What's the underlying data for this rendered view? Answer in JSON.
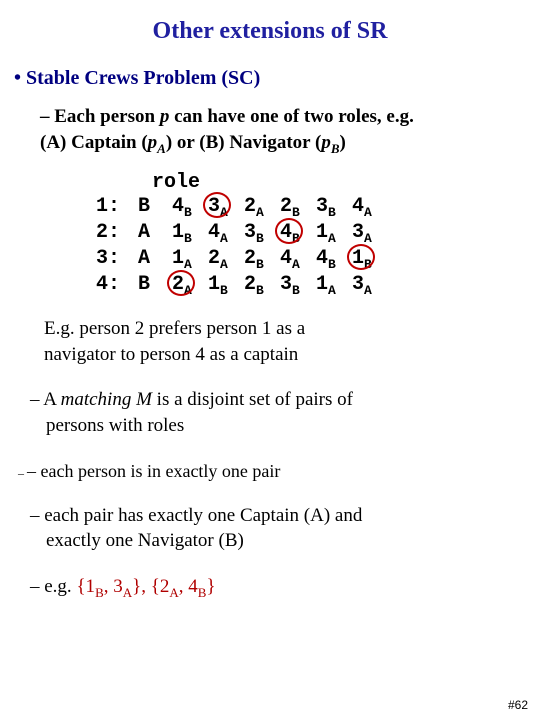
{
  "title": "Other extensions of SR",
  "bullet": "• Stable Crews Problem (SC)",
  "sub_line1": "– Each person ",
  "sub_p": "p",
  "sub_line1b": " can have one of two roles, e.g.",
  "sub_line2a": "(A) Captain (",
  "sub_pA": "p",
  "sub_Asub": "A",
  "sub_line2b": ") or (B) Navigator (",
  "sub_pB": "p",
  "sub_Bsub": "B",
  "sub_line2c": ")",
  "role_hdr": "role",
  "rows": [
    {
      "label": "1:",
      "role": "B",
      "cells": [
        {
          "n": "4",
          "s": "B",
          "c": false
        },
        {
          "n": "3",
          "s": "A",
          "c": true
        },
        {
          "n": "2",
          "s": "A",
          "c": false
        },
        {
          "n": "2",
          "s": "B",
          "c": false
        },
        {
          "n": "3",
          "s": "B",
          "c": false
        },
        {
          "n": "4",
          "s": "A",
          "c": false
        }
      ]
    },
    {
      "label": "2:",
      "role": "A",
      "cells": [
        {
          "n": "1",
          "s": "B",
          "c": false
        },
        {
          "n": "4",
          "s": "A",
          "c": false
        },
        {
          "n": "3",
          "s": "B",
          "c": false
        },
        {
          "n": "4",
          "s": "B",
          "c": true
        },
        {
          "n": "1",
          "s": "A",
          "c": false
        },
        {
          "n": "3",
          "s": "A",
          "c": false
        }
      ]
    },
    {
      "label": "3:",
      "role": "A",
      "cells": [
        {
          "n": "1",
          "s": "A",
          "c": false
        },
        {
          "n": "2",
          "s": "A",
          "c": false
        },
        {
          "n": "2",
          "s": "B",
          "c": false
        },
        {
          "n": "4",
          "s": "A",
          "c": false
        },
        {
          "n": "4",
          "s": "B",
          "c": false
        },
        {
          "n": "1",
          "s": "B",
          "c": true
        }
      ]
    },
    {
      "label": "4:",
      "role": "B",
      "cells": [
        {
          "n": "2",
          "s": "A",
          "c": true
        },
        {
          "n": "1",
          "s": "B",
          "c": false
        },
        {
          "n": "2",
          "s": "B",
          "c": false
        },
        {
          "n": "3",
          "s": "B",
          "c": false
        },
        {
          "n": "1",
          "s": "A",
          "c": false
        },
        {
          "n": "3",
          "s": "A",
          "c": false
        }
      ]
    }
  ],
  "eg1": "E.g. person 2 prefers person 1 as a",
  "eg2": "navigator to person 4 as a captain",
  "m_a": "– A ",
  "m_b": "matching M",
  "m_c": " is a disjoint set of pairs of",
  "m_d": "persons with roles",
  "p2": "– each person is in exactly one pair",
  "p3a": "– each pair has exactly one Captain (A) and",
  "p3b": "exactly one Navigator (B)",
  "ex_a": "– e.g. ",
  "ex_b": "{1",
  "ex_b2": "B",
  "ex_c": ", 3",
  "ex_c2": "A",
  "ex_d": "}, {2",
  "ex_d2": "A",
  "ex_e": ", 4",
  "ex_e2": "B",
  "ex_f": "}",
  "slide": "#62",
  "colors": {
    "title": "#2020a0",
    "bullet": "#000080",
    "red": "#b00000",
    "circle": "#c00000"
  }
}
